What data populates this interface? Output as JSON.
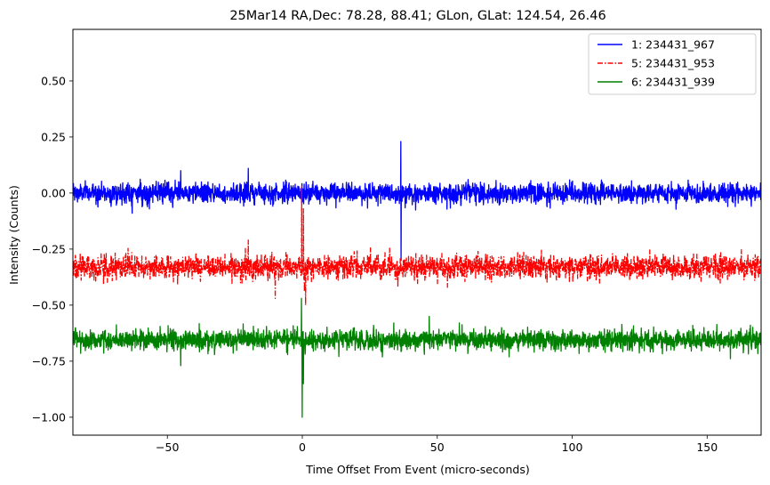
{
  "chart_data": {
    "type": "line",
    "title": "25Mar14 RA,Dec:   78.28,  88.41; GLon, GLat:  124.54,  26.46",
    "xlabel": "Time Offset From Event (micro-seconds)",
    "ylabel": "Intensity (Counts)",
    "xlim": [
      -85,
      170
    ],
    "ylim": [
      -1.08,
      0.73
    ],
    "xticks": [
      -50,
      0,
      50,
      100,
      150
    ],
    "xtick_labels": [
      "−50",
      "0",
      "50",
      "100",
      "150"
    ],
    "yticks": [
      -1.0,
      -0.75,
      -0.5,
      -0.25,
      0.0,
      0.25,
      0.5
    ],
    "ytick_labels": [
      "−1.00",
      "−0.75",
      "−0.50",
      "−0.25",
      "0.00",
      "0.25",
      "0.50"
    ],
    "grid": false,
    "legend_position": "top-right",
    "series": [
      {
        "name": "1: 234431_967",
        "color": "#0000ff",
        "linestyle": "solid",
        "baseline": 0.0,
        "noise_sigma": 0.03,
        "x_range": [
          -85,
          170
        ],
        "events": [
          {
            "x": 36.5,
            "y": 0.23
          },
          {
            "x": 36.6,
            "y": -0.3
          },
          {
            "x": -20.0,
            "y": 0.11
          },
          {
            "x": -45.0,
            "y": 0.1
          },
          {
            "x": -63.0,
            "y": -0.09
          }
        ]
      },
      {
        "name": "5: 234431_953",
        "color": "#ff0000",
        "linestyle": "dashdot",
        "baseline": -0.33,
        "noise_sigma": 0.035,
        "x_range": [
          -85,
          170
        ],
        "events": [
          {
            "x": -0.2,
            "y": 0.03
          },
          {
            "x": 0.4,
            "y": -0.07
          },
          {
            "x": 0.8,
            "y": -0.44
          },
          {
            "x": 1.2,
            "y": -0.5
          },
          {
            "x": -20.0,
            "y": -0.21
          },
          {
            "x": -10.0,
            "y": -0.47
          }
        ]
      },
      {
        "name": "6: 234431_939",
        "color": "#008000",
        "linestyle": "solid",
        "baseline": -0.655,
        "noise_sigma": 0.03,
        "x_range": [
          -85,
          170
        ],
        "events": [
          {
            "x": -0.3,
            "y": -0.47
          },
          {
            "x": 0.0,
            "y": -1.0
          },
          {
            "x": 0.4,
            "y": -0.85
          },
          {
            "x": 47.0,
            "y": -0.55
          },
          {
            "x": -45.0,
            "y": -0.77
          }
        ]
      }
    ]
  }
}
